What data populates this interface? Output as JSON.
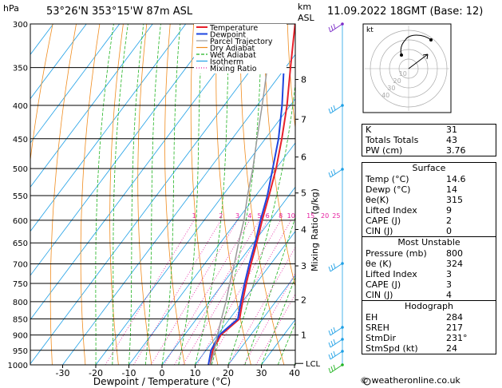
{
  "header": {
    "hpa_label": "hPa",
    "location": "53°26'N  353°15'W  87m  ASL",
    "km_label": "km",
    "asl_label": "ASL",
    "datetime": "11.09.2022  18GMT  (Base: 12)"
  },
  "legend": [
    "Temperature",
    "Dewpoint",
    "Parcel Trajectory",
    "Dry Adiabat",
    "Wet Adiabat",
    "Isotherm",
    "Mixing Ratio"
  ],
  "colors": {
    "temperature": "#e8202a",
    "dewpoint": "#1e46e0",
    "parcel": "#9a9a9a",
    "dry_adiabat": "#f08c1e",
    "wet_adiabat": "#22b422",
    "isotherm": "#1ea0e6",
    "mixing_ratio": "#e61ea0",
    "wind": "#1ea0e6"
  },
  "chart_data": {
    "type": "line",
    "title": "53°26'N  353°15'W  87m  ASL",
    "xlabel": "Dewpoint / Temperature (°C)",
    "ylabel": "hPa",
    "x_ticks": [
      -30,
      -20,
      -10,
      0,
      10,
      20,
      30,
      40
    ],
    "pressure_levels": [
      300,
      350,
      400,
      450,
      500,
      550,
      600,
      650,
      700,
      750,
      800,
      850,
      900,
      950,
      1000
    ],
    "km_ticks": [
      "1",
      "2",
      "3",
      "4",
      "5",
      "6",
      "7",
      "8"
    ],
    "mixing_ratio_label": "Mixing Ratio (g/kg)",
    "mixing_ratio_ticks": [
      "1",
      "2",
      "3",
      "4",
      "5",
      "6",
      "8",
      "10",
      "15",
      "20",
      "25"
    ],
    "lcl_label": "LCL",
    "series": [
      {
        "name": "Temperature",
        "points": [
          [
            1000,
            14.6
          ],
          [
            950,
            12
          ],
          [
            900,
            11
          ],
          [
            850,
            13
          ],
          [
            800,
            10
          ],
          [
            750,
            7
          ],
          [
            700,
            4
          ],
          [
            650,
            1
          ],
          [
            600,
            -2.5
          ],
          [
            550,
            -6
          ],
          [
            500,
            -10
          ],
          [
            450,
            -15
          ],
          [
            400,
            -21
          ],
          [
            350,
            -28.5
          ],
          [
            300,
            -37
          ]
        ]
      },
      {
        "name": "Dewpoint",
        "points": [
          [
            1000,
            14
          ],
          [
            950,
            11.5
          ],
          [
            900,
            10.5
          ],
          [
            850,
            12.5
          ],
          [
            800,
            9.5
          ],
          [
            750,
            6.5
          ],
          [
            700,
            3.5
          ],
          [
            650,
            0.5
          ],
          [
            600,
            -3
          ],
          [
            550,
            -6.5
          ],
          [
            500,
            -11
          ],
          [
            450,
            -16
          ],
          [
            400,
            -22.5
          ],
          [
            350,
            -30.5
          ],
          [
            300,
            -40
          ]
        ]
      },
      {
        "name": "Parcel Trajectory",
        "points": [
          [
            1000,
            14.6
          ],
          [
            950,
            12.5
          ],
          [
            900,
            10
          ],
          [
            850,
            7.5
          ],
          [
            800,
            5
          ],
          [
            750,
            2
          ],
          [
            700,
            -1
          ],
          [
            650,
            -4.5
          ],
          [
            600,
            -8
          ],
          [
            550,
            -12.5
          ],
          [
            500,
            -17
          ],
          [
            450,
            -22.5
          ],
          [
            400,
            -28.5
          ],
          [
            350,
            -35.5
          ],
          [
            300,
            -44
          ]
        ]
      }
    ]
  },
  "hodograph": {
    "label": "kt",
    "rings": [
      "10",
      "20",
      "30",
      "40"
    ]
  },
  "indices": [
    {
      "label": "K",
      "value": "31"
    },
    {
      "label": "Totals Totals",
      "value": "43"
    },
    {
      "label": "PW (cm)",
      "value": "3.76"
    }
  ],
  "surface": {
    "title": "Surface",
    "rows": [
      {
        "label": "Temp (°C)",
        "value": "14.6"
      },
      {
        "label": "Dewp (°C)",
        "value": "14"
      },
      {
        "label": "θe(K)",
        "value": "315"
      },
      {
        "label": "Lifted Index",
        "value": "9"
      },
      {
        "label": "CAPE (J)",
        "value": "2"
      },
      {
        "label": "CIN (J)",
        "value": "0"
      }
    ]
  },
  "most_unstable": {
    "title": "Most Unstable",
    "rows": [
      {
        "label": "Pressure (mb)",
        "value": "800"
      },
      {
        "label": "θe (K)",
        "value": "324"
      },
      {
        "label": "Lifted Index",
        "value": "3"
      },
      {
        "label": "CAPE (J)",
        "value": "3"
      },
      {
        "label": "CIN (J)",
        "value": "4"
      }
    ]
  },
  "hodograph_table": {
    "title": "Hodograph",
    "rows": [
      {
        "label": "EH",
        "value": "284"
      },
      {
        "label": "SREH",
        "value": "217"
      },
      {
        "label": "StmDir",
        "value": "231°"
      },
      {
        "label": "StmSpd (kt)",
        "value": "24"
      }
    ]
  },
  "copyright": "© weatheronline.co.uk"
}
